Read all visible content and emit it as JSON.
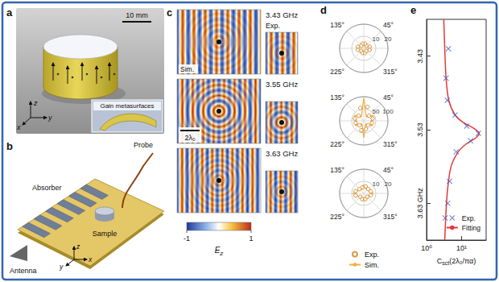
{
  "panel_labels": [
    "a",
    "b",
    "c",
    "d",
    "e"
  ],
  "photo": {
    "scale_bar": "10 mm",
    "axis_labels": [
      "z",
      "y",
      "x"
    ],
    "inset_label": "Gain metasurfaces"
  },
  "schematic": {
    "absorber": "Absorber",
    "probe": "Probe",
    "sample": "Sample",
    "antenna": "Antenna",
    "axis_labels": [
      "z",
      "x",
      "y"
    ]
  },
  "field_maps": {
    "rows": [
      {
        "frequency": "3.43 GHz",
        "measured_label": "Exp.",
        "simulated_label": "Sim."
      },
      {
        "frequency": "3.55 GHz",
        "scale_bar": "2λ₀"
      },
      {
        "frequency": "3.63 GHz"
      }
    ],
    "colorbar": {
      "range": [
        -1,
        1
      ],
      "ticks": [
        -1,
        1
      ],
      "label": {
        "symbol": "E",
        "subscript": "z"
      }
    }
  },
  "chart_data": [
    {
      "type": "polar",
      "thetalim": [
        0,
        360
      ],
      "theta_ticks": [
        {
          "value": 45,
          "label": "45°"
        },
        {
          "value": 135,
          "label": "135°"
        },
        {
          "value": 225,
          "label": "225°"
        },
        {
          "value": 315,
          "label": "315°"
        }
      ],
      "rlim": [
        0,
        20
      ],
      "rticks": [
        10,
        20
      ],
      "series": [
        {
          "name": "Exp.",
          "type": "scatter",
          "marker": "circle",
          "color": "#c97c10",
          "angles": [
            15,
            45,
            75,
            105,
            135,
            165,
            195,
            225,
            255,
            285,
            315,
            345
          ],
          "values": [
            5,
            3,
            4,
            4,
            3,
            5,
            5,
            3,
            4,
            4,
            3,
            5
          ]
        },
        {
          "name": "Sim.",
          "type": "line",
          "line_style": "solid",
          "color": "#f2b04a",
          "angles": [
            0,
            30,
            60,
            90,
            120,
            150,
            180,
            210,
            240,
            270,
            300,
            330,
            360
          ],
          "values": [
            6,
            4,
            3,
            5,
            3,
            4,
            6,
            4,
            3,
            5,
            3,
            4,
            6
          ]
        }
      ]
    },
    {
      "type": "polar",
      "thetalim": [
        0,
        360
      ],
      "theta_ticks": [
        {
          "value": 45,
          "label": "45°"
        },
        {
          "value": 135,
          "label": "135°"
        },
        {
          "value": 225,
          "label": "225°"
        },
        {
          "value": 315,
          "label": "315°"
        }
      ],
      "rlim": [
        0,
        100
      ],
      "rticks": [
        50,
        100
      ],
      "series": [
        {
          "name": "Exp.",
          "type": "scatter",
          "marker": "circle",
          "color": "#c97c10",
          "angles": [
            15,
            45,
            75,
            105,
            135,
            165,
            195,
            225,
            255,
            285,
            315,
            345
          ],
          "values": [
            38,
            30,
            60,
            55,
            30,
            38,
            35,
            25,
            40,
            35,
            25,
            35
          ]
        },
        {
          "name": "Sim.",
          "type": "line",
          "line_style": "solid",
          "color": "#f2b04a",
          "angles": [
            0,
            30,
            60,
            90,
            120,
            150,
            180,
            210,
            240,
            270,
            300,
            330,
            360
          ],
          "values": [
            30,
            45,
            20,
            95,
            20,
            45,
            30,
            40,
            15,
            70,
            15,
            40,
            30
          ]
        }
      ]
    },
    {
      "type": "polar",
      "thetalim": [
        0,
        360
      ],
      "legend": "bottom",
      "theta_ticks": [
        {
          "value": 45,
          "label": "45°"
        },
        {
          "value": 135,
          "label": "135°"
        },
        {
          "value": 225,
          "label": "225°"
        },
        {
          "value": 315,
          "label": "315°"
        }
      ],
      "rlim": [
        0,
        20
      ],
      "rticks": [
        10,
        20
      ],
      "series": [
        {
          "name": "Exp.",
          "type": "scatter",
          "marker": "circle",
          "color": "#c97c10",
          "angles": [
            15,
            45,
            75,
            105,
            135,
            165,
            195,
            225,
            255,
            285,
            315,
            345
          ],
          "values": [
            6,
            5,
            6,
            5,
            5,
            7,
            7,
            4,
            5,
            5,
            4,
            6
          ]
        },
        {
          "name": "Sim.",
          "type": "line",
          "line_style": "solid",
          "color": "#f2b04a",
          "angles": [
            0,
            30,
            60,
            90,
            120,
            150,
            180,
            210,
            240,
            270,
            300,
            330,
            360
          ],
          "values": [
            8,
            5,
            4,
            7,
            4,
            5,
            9,
            5,
            4,
            6,
            4,
            5,
            8
          ]
        }
      ]
    },
    {
      "type": "line",
      "log": "x",
      "legend": "lower right",
      "x_label": {
        "symbol": "C",
        "subscript": "sct",
        "unit": "(2λ₀/πα)"
      },
      "xlim": [
        1,
        50
      ],
      "xticks": [
        {
          "value": 1,
          "label": "10⁰"
        },
        {
          "value": 10,
          "label": "10¹"
        }
      ],
      "ylim": [
        3.38,
        3.68
      ],
      "yticks": [
        3.43,
        3.53,
        {
          "value": 3.63,
          "label": "3.63 GHz"
        }
      ],
      "series": [
        {
          "name": "Exp.",
          "type": "scatter",
          "marker": "cross",
          "color": "#3d5fc4",
          "x": [
            4.2,
            3.6,
            3.9,
            6.5,
            14,
            30,
            18,
            7,
            4.5,
            4.0,
            3.4
          ],
          "y": [
            3.42,
            3.46,
            3.49,
            3.51,
            3.525,
            3.535,
            3.545,
            3.56,
            3.6,
            3.63,
            3.65
          ]
        },
        {
          "name": "Fitting",
          "type": "line",
          "line_style": "solid",
          "color": "#e53935",
          "x": [
            3.1,
            3.3,
            3.6,
            4.3,
            6.5,
            11,
            22,
            32,
            24,
            13,
            8,
            5,
            4,
            3.6,
            3.3
          ],
          "y": [
            3.38,
            3.42,
            3.46,
            3.49,
            3.51,
            3.52,
            3.528,
            3.535,
            3.542,
            3.55,
            3.56,
            3.58,
            3.61,
            3.64,
            3.68
          ]
        }
      ]
    }
  ]
}
